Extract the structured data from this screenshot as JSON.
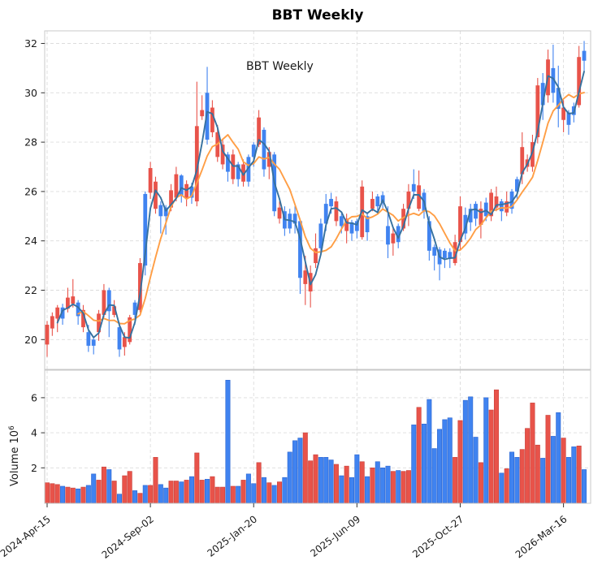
{
  "title": "BBT  Weekly",
  "inplot_label": "BBT  Weekly",
  "colors": {
    "candle_red": "#e8534a",
    "candle_blue": "#4083f0",
    "red_edge": "#c8413a",
    "blue_edge": "#2b65cf",
    "ma_short_line": "#36719f",
    "ma_long_line": "#ff9e45",
    "grid": "#dcdcdc",
    "frame": "#c8c8c8",
    "tick_text": "#1a1a1a"
  },
  "chart_data": {
    "type": "candlestick_with_volume",
    "title": "BBT  Weekly",
    "price_ticks": [
      20,
      22,
      24,
      26,
      28,
      30,
      32
    ],
    "price_range": [
      18.8,
      32.5
    ],
    "volume_ticks": [
      2,
      4,
      6
    ],
    "volume_range": [
      0,
      7.5
    ],
    "volume_axis_label": "Volume",
    "volume_axis_exp_base": "10",
    "volume_axis_exp": "6",
    "grid": "dashed",
    "x_tick_weeks": [
      0,
      20,
      40,
      60,
      80,
      100
    ],
    "x_tick_labels": [
      "2024-Apr-15",
      "2024-Sep-02",
      "2025-Jan-20",
      "2025-Jun-09",
      "2025-Oct-27",
      "2026-Mar-16"
    ],
    "ma_short_window": 3,
    "ma_long_window": 7,
    "weeks_format": [
      "open",
      "high",
      "low",
      "close",
      "volume_millions",
      "color r=red b=blue"
    ],
    "weeks": [
      [
        20.6,
        20.75,
        19.3,
        19.8,
        1.15,
        "r"
      ],
      [
        20.45,
        21.1,
        20.15,
        20.95,
        1.1,
        "r"
      ],
      [
        20.85,
        21.4,
        20.3,
        21.3,
        1.05,
        "r"
      ],
      [
        20.85,
        21.45,
        20.6,
        21.3,
        0.95,
        "b"
      ],
      [
        21.7,
        22.1,
        21.1,
        21.25,
        0.9,
        "r"
      ],
      [
        21.45,
        22.45,
        21.3,
        21.75,
        0.85,
        "r"
      ],
      [
        21.5,
        21.6,
        20.6,
        20.95,
        0.8,
        "b"
      ],
      [
        21.2,
        21.4,
        20.3,
        20.5,
        0.9,
        "r"
      ],
      [
        20.3,
        20.6,
        19.5,
        19.75,
        1.0,
        "b"
      ],
      [
        19.75,
        20.05,
        19.4,
        20.0,
        1.65,
        "b"
      ],
      [
        20.3,
        21.2,
        19.95,
        21.05,
        1.3,
        "r"
      ],
      [
        21.0,
        22.25,
        20.9,
        22.0,
        2.05,
        "r"
      ],
      [
        22.0,
        22.1,
        20.1,
        21.15,
        1.9,
        "b"
      ],
      [
        21.35,
        21.6,
        20.9,
        21.0,
        1.25,
        "r"
      ],
      [
        20.5,
        20.7,
        19.3,
        19.6,
        0.5,
        "b"
      ],
      [
        20.1,
        20.3,
        19.35,
        19.7,
        1.55,
        "r"
      ],
      [
        19.9,
        21.0,
        19.8,
        20.9,
        1.8,
        "r"
      ],
      [
        21.0,
        21.6,
        20.6,
        21.5,
        0.7,
        "b"
      ],
      [
        21.2,
        23.3,
        21.1,
        23.1,
        0.55,
        "r"
      ],
      [
        23.0,
        26.0,
        22.6,
        25.9,
        1.0,
        "b"
      ],
      [
        25.95,
        27.2,
        25.7,
        26.95,
        1.0,
        "r"
      ],
      [
        26.4,
        26.6,
        25.1,
        25.3,
        2.6,
        "r"
      ],
      [
        25.45,
        25.6,
        24.3,
        25.0,
        1.05,
        "b"
      ],
      [
        25.0,
        25.45,
        24.25,
        25.35,
        0.85,
        "b"
      ],
      [
        25.35,
        26.3,
        25.2,
        26.05,
        1.25,
        "r"
      ],
      [
        26.7,
        27.0,
        25.6,
        25.75,
        1.25,
        "r"
      ],
      [
        25.85,
        26.7,
        25.55,
        26.65,
        1.2,
        "b"
      ],
      [
        26.3,
        26.45,
        25.4,
        25.75,
        1.3,
        "r"
      ],
      [
        25.75,
        26.35,
        25.5,
        26.2,
        1.5,
        "b"
      ],
      [
        25.6,
        30.45,
        25.4,
        28.65,
        2.85,
        "r"
      ],
      [
        29.3,
        29.9,
        28.9,
        29.05,
        1.3,
        "r"
      ],
      [
        28.1,
        31.05,
        27.9,
        30.0,
        1.35,
        "b"
      ],
      [
        29.4,
        29.7,
        28.2,
        28.4,
        1.5,
        "r"
      ],
      [
        28.4,
        28.7,
        27.2,
        27.4,
        0.9,
        "r"
      ],
      [
        27.9,
        28.1,
        26.9,
        27.1,
        0.9,
        "r"
      ],
      [
        26.8,
        27.6,
        26.4,
        27.5,
        7.0,
        "b"
      ],
      [
        27.5,
        27.7,
        26.3,
        26.5,
        0.95,
        "r"
      ],
      [
        26.5,
        27.2,
        26.2,
        27.1,
        0.95,
        "b"
      ],
      [
        27.1,
        27.3,
        26.2,
        26.4,
        1.3,
        "r"
      ],
      [
        26.4,
        27.5,
        26.2,
        27.4,
        1.65,
        "b"
      ],
      [
        27.4,
        28.0,
        27.0,
        27.9,
        1.1,
        "b"
      ],
      [
        27.9,
        29.3,
        27.8,
        29.0,
        2.3,
        "r"
      ],
      [
        28.5,
        28.6,
        26.6,
        26.9,
        1.45,
        "b"
      ],
      [
        27.6,
        27.8,
        26.5,
        27.0,
        1.15,
        "r"
      ],
      [
        27.5,
        27.6,
        25.0,
        25.2,
        1.0,
        "b"
      ],
      [
        25.35,
        25.6,
        24.7,
        24.9,
        1.2,
        "r"
      ],
      [
        25.2,
        25.4,
        24.2,
        24.5,
        1.45,
        "b"
      ],
      [
        24.5,
        25.3,
        24.3,
        25.1,
        2.9,
        "b"
      ],
      [
        25.1,
        25.4,
        24.3,
        24.7,
        3.55,
        "b"
      ],
      [
        24.8,
        24.9,
        21.85,
        22.5,
        3.7,
        "b"
      ],
      [
        22.8,
        23.4,
        21.4,
        22.25,
        4.0,
        "r"
      ],
      [
        22.7,
        23.0,
        21.3,
        21.95,
        2.4,
        "r"
      ],
      [
        23.1,
        24.3,
        22.9,
        23.7,
        2.75,
        "r"
      ],
      [
        23.7,
        24.9,
        23.4,
        24.7,
        2.6,
        "b"
      ],
      [
        24.7,
        25.9,
        24.4,
        25.5,
        2.6,
        "b"
      ],
      [
        25.4,
        25.95,
        25.1,
        25.7,
        2.45,
        "b"
      ],
      [
        25.6,
        25.8,
        24.6,
        24.8,
        2.2,
        "r"
      ],
      [
        24.6,
        25.1,
        24.3,
        25.0,
        1.55,
        "b"
      ],
      [
        24.9,
        25.1,
        23.9,
        24.4,
        2.1,
        "r"
      ],
      [
        24.3,
        24.85,
        24.0,
        24.75,
        1.45,
        "b"
      ],
      [
        24.4,
        24.9,
        24.1,
        24.8,
        2.75,
        "b"
      ],
      [
        24.15,
        26.45,
        24.05,
        26.2,
        2.35,
        "r"
      ],
      [
        25.0,
        25.15,
        24.0,
        24.35,
        1.5,
        "b"
      ],
      [
        25.7,
        26.0,
        25.2,
        25.3,
        2.0,
        "r"
      ],
      [
        25.4,
        25.9,
        25.1,
        25.8,
        2.35,
        "b"
      ],
      [
        25.55,
        26.0,
        25.3,
        25.85,
        2.0,
        "b"
      ],
      [
        24.6,
        25.4,
        23.3,
        23.85,
        2.1,
        "b"
      ],
      [
        24.3,
        24.5,
        23.4,
        23.9,
        1.8,
        "r"
      ],
      [
        23.95,
        24.7,
        23.7,
        24.6,
        1.85,
        "b"
      ],
      [
        24.5,
        25.5,
        24.4,
        25.3,
        1.8,
        "r"
      ],
      [
        25.3,
        26.3,
        24.6,
        26.0,
        1.85,
        "r"
      ],
      [
        26.0,
        26.9,
        25.7,
        26.3,
        4.45,
        "b"
      ],
      [
        26.25,
        26.85,
        25.2,
        25.3,
        5.45,
        "r"
      ],
      [
        25.95,
        26.1,
        24.9,
        25.2,
        4.5,
        "b"
      ],
      [
        24.8,
        25.0,
        23.2,
        23.6,
        5.9,
        "b"
      ],
      [
        23.75,
        23.85,
        22.8,
        23.4,
        3.1,
        "b"
      ],
      [
        23.65,
        23.75,
        22.4,
        23.05,
        4.2,
        "b"
      ],
      [
        23.6,
        23.7,
        22.9,
        23.3,
        4.75,
        "b"
      ],
      [
        23.3,
        23.7,
        22.9,
        23.55,
        4.85,
        "b"
      ],
      [
        23.95,
        24.25,
        23.0,
        23.1,
        2.6,
        "r"
      ],
      [
        23.95,
        25.8,
        23.6,
        25.4,
        4.7,
        "r"
      ],
      [
        24.3,
        25.35,
        24.05,
        25.05,
        5.85,
        "b"
      ],
      [
        24.75,
        25.5,
        24.4,
        25.3,
        6.05,
        "b"
      ],
      [
        24.9,
        25.6,
        24.6,
        25.5,
        3.75,
        "b"
      ],
      [
        25.3,
        25.6,
        24.1,
        24.65,
        2.3,
        "r"
      ],
      [
        25.0,
        25.75,
        24.8,
        25.55,
        6.0,
        "b"
      ],
      [
        25.95,
        26.1,
        24.8,
        25.0,
        5.3,
        "r"
      ],
      [
        25.35,
        26.2,
        25.2,
        25.8,
        6.45,
        "r"
      ],
      [
        25.2,
        25.7,
        24.8,
        25.6,
        1.7,
        "b"
      ],
      [
        25.6,
        26.0,
        25.0,
        25.15,
        1.95,
        "r"
      ],
      [
        25.3,
        26.1,
        25.1,
        26.0,
        2.9,
        "b"
      ],
      [
        26.0,
        26.6,
        25.7,
        26.5,
        2.6,
        "b"
      ],
      [
        26.7,
        28.4,
        26.3,
        27.8,
        3.05,
        "r"
      ],
      [
        27.3,
        27.5,
        26.8,
        27.0,
        4.25,
        "r"
      ],
      [
        27.0,
        28.3,
        26.8,
        28.0,
        5.7,
        "r"
      ],
      [
        28.2,
        30.6,
        27.95,
        30.3,
        3.3,
        "r"
      ],
      [
        29.5,
        30.8,
        28.9,
        30.4,
        2.55,
        "b"
      ],
      [
        29.9,
        31.75,
        29.6,
        31.35,
        5.0,
        "r"
      ],
      [
        31.0,
        31.95,
        29.6,
        30.0,
        3.8,
        "b"
      ],
      [
        30.2,
        31.1,
        28.6,
        29.35,
        5.15,
        "b"
      ],
      [
        29.4,
        29.7,
        28.4,
        28.9,
        3.7,
        "r"
      ],
      [
        28.7,
        29.3,
        28.3,
        29.2,
        2.6,
        "b"
      ],
      [
        29.1,
        29.6,
        28.8,
        29.45,
        3.2,
        "b"
      ],
      [
        29.5,
        31.9,
        29.4,
        31.45,
        3.25,
        "r"
      ],
      [
        31.3,
        32.1,
        30.9,
        31.7,
        1.9,
        "b"
      ]
    ]
  }
}
